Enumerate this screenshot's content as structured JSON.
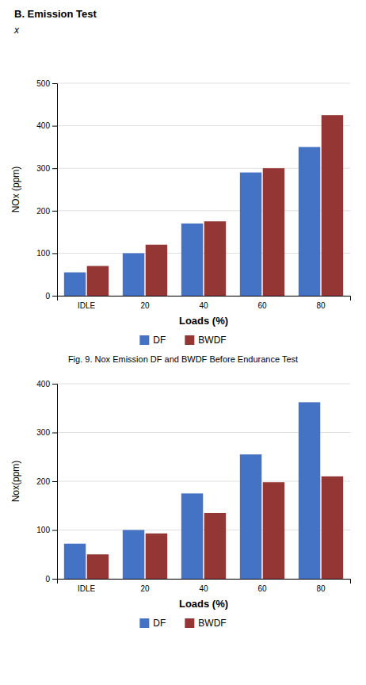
{
  "chart_data": [
    {
      "type": "bar",
      "title": "B.    Emission Test",
      "subtitle": "x",
      "xlabel": "Loads (%)",
      "ylabel": "NOx (ppm)",
      "categories": [
        "IDLE",
        "20",
        "40",
        "60",
        "80"
      ],
      "series": [
        {
          "name": "DF",
          "color": "#4472C4",
          "values": [
            55,
            100,
            170,
            290,
            350
          ]
        },
        {
          "name": "BWDF",
          "color": "#943634",
          "values": [
            70,
            120,
            175,
            300,
            425
          ]
        }
      ],
      "ylim": [
        0,
        500
      ],
      "yticks": [
        0,
        100,
        200,
        300,
        400,
        500
      ],
      "grid": true,
      "legend": "bottom",
      "annotations": [
        "Fig. 9. Nox Emission DF and BWDF Before Endurance Test"
      ]
    },
    {
      "type": "bar",
      "xlabel": "Loads (%)",
      "ylabel": "Nox(ppm)",
      "categories": [
        "IDLE",
        "20",
        "40",
        "60",
        "80"
      ],
      "series": [
        {
          "name": "DF",
          "color": "#4472C4",
          "values": [
            72,
            100,
            175,
            255,
            362
          ]
        },
        {
          "name": "BWDF",
          "color": "#943634",
          "values": [
            50,
            93,
            135,
            198,
            210
          ]
        }
      ],
      "ylim": [
        0,
        400
      ],
      "yticks": [
        0,
        100,
        200,
        300,
        400
      ],
      "grid": true,
      "legend": "bottom"
    }
  ]
}
